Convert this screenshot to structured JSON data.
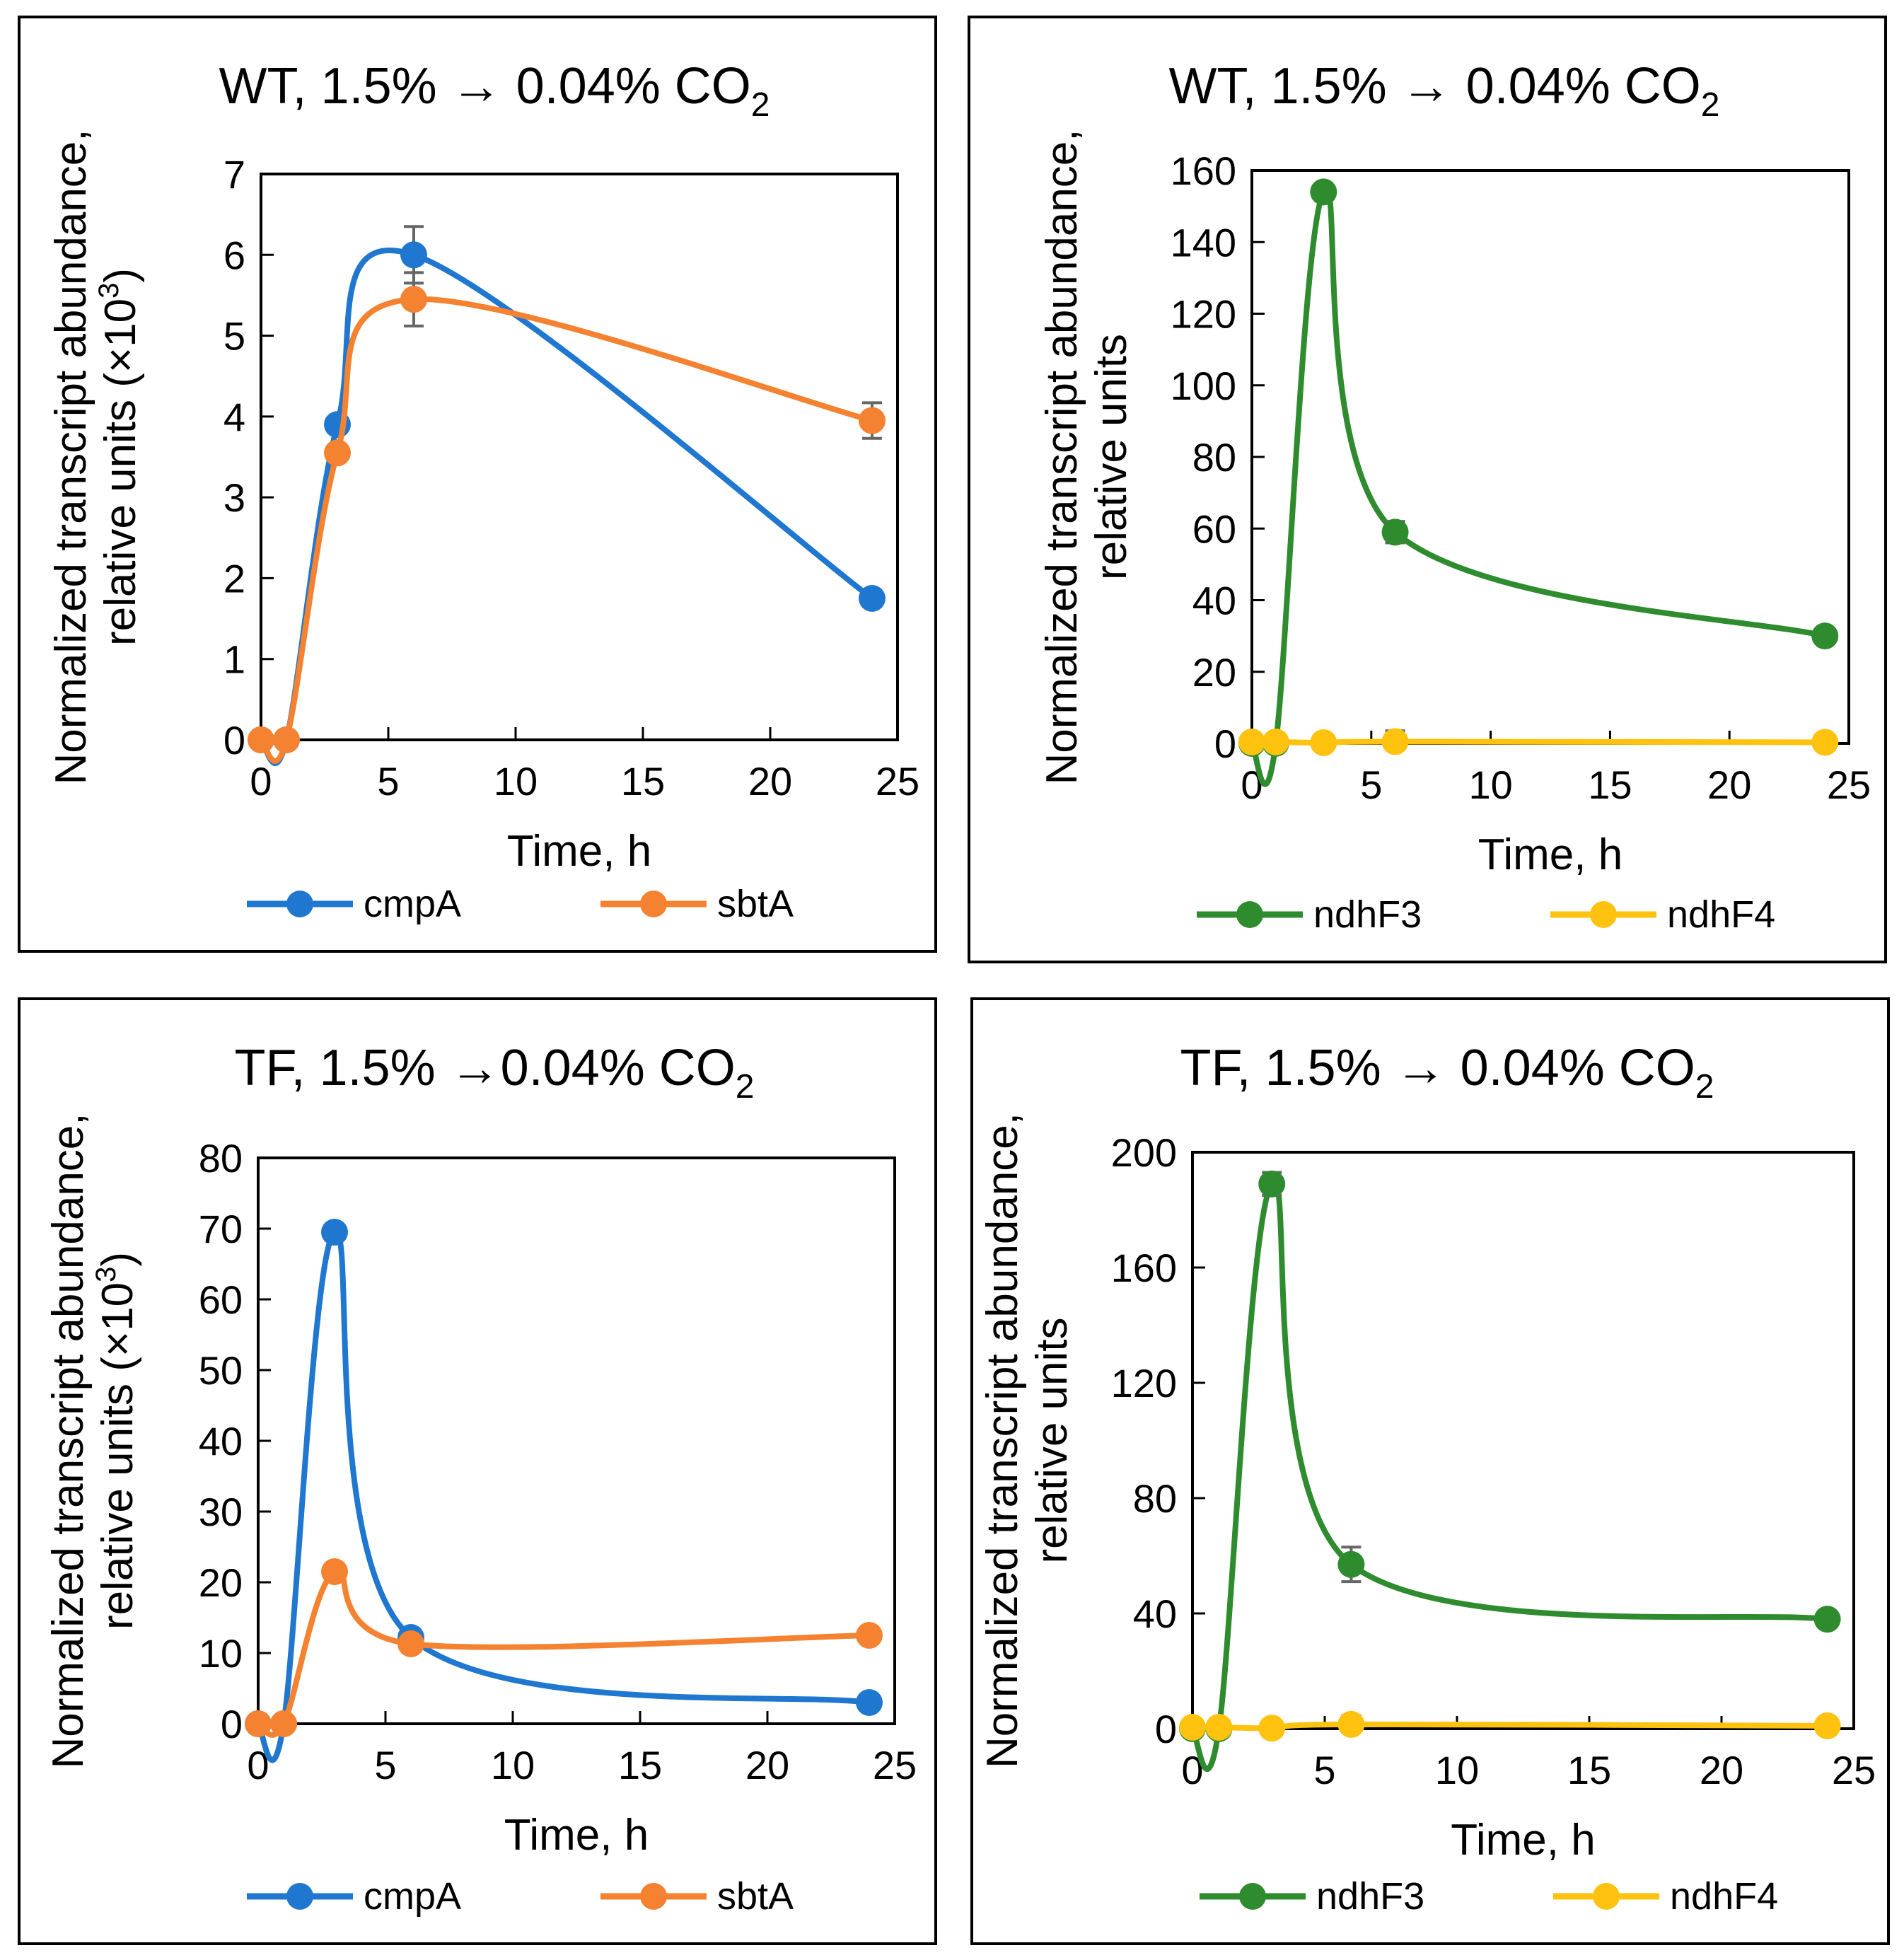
{
  "chart_data": [
    {
      "type": "line",
      "title_main": "WT, 1.5% → 0.04% CO",
      "title_sub": "2",
      "xlabel": "Time, h",
      "ylabel_line1": "Normalized transcript abundance,",
      "ylabel_line2": "relative units (×10",
      "ylabel_sup": "3",
      "ylabel_end": ")",
      "xlim": [
        0,
        25
      ],
      "ylim": [
        0,
        7
      ],
      "xticks": [
        "0",
        "5",
        "10",
        "15",
        "20",
        "25"
      ],
      "yticks": [
        "0",
        "1",
        "2",
        "3",
        "4",
        "5",
        "6",
        "7"
      ],
      "series": [
        {
          "name": "cmpA",
          "color": "#1f77cf",
          "x": [
            0,
            1,
            3,
            6,
            24
          ],
          "y": [
            0,
            0,
            3.9,
            6.0,
            1.75
          ],
          "err": [
            0,
            0,
            0.05,
            0.35,
            0.1
          ]
        },
        {
          "name": "sbtA",
          "color": "#f58230",
          "x": [
            0,
            1,
            3,
            6,
            24
          ],
          "y": [
            0,
            0,
            3.55,
            5.45,
            3.95
          ],
          "err": [
            0,
            0,
            0.05,
            0.33,
            0.22
          ]
        }
      ]
    },
    {
      "type": "line",
      "title_main": "WT, 1.5% → 0.04% CO",
      "title_sub": "2",
      "xlabel": "Time, h",
      "ylabel_line1": "Normalized transcript abundance,",
      "ylabel_line2": "relative units",
      "ylabel_sup": "",
      "ylabel_end": "",
      "xlim": [
        0,
        25
      ],
      "ylim": [
        0,
        160
      ],
      "xticks": [
        "0",
        "5",
        "10",
        "15",
        "20",
        "25"
      ],
      "yticks": [
        "0",
        "20",
        "40",
        "60",
        "80",
        "100",
        "120",
        "140",
        "160"
      ],
      "series": [
        {
          "name": "ndhF3",
          "color": "#2e8b2e",
          "x": [
            0,
            1,
            3,
            6,
            24
          ],
          "y": [
            0,
            0,
            154,
            59,
            30
          ],
          "err": [
            0,
            0,
            2,
            3,
            1
          ]
        },
        {
          "name": "ndhF4",
          "color": "#ffc20e",
          "x": [
            0,
            1,
            3,
            6,
            24
          ],
          "y": [
            0.4,
            0.4,
            0.2,
            0.5,
            0.3
          ],
          "err": [
            0,
            0,
            0,
            3,
            2
          ]
        }
      ]
    },
    {
      "type": "line",
      "title_main": "TF, 1.5% →0.04% CO",
      "title_sub": "2",
      "xlabel": "Time, h",
      "ylabel_line1": "Normalized transcript abundance,",
      "ylabel_line2": "relative units (×10",
      "ylabel_sup": "3",
      "ylabel_end": ")",
      "xlim": [
        0,
        25
      ],
      "ylim": [
        0,
        80
      ],
      "xticks": [
        "0",
        "5",
        "10",
        "15",
        "20",
        "25"
      ],
      "yticks": [
        "0",
        "10",
        "20",
        "30",
        "40",
        "50",
        "60",
        "70",
        "80"
      ],
      "series": [
        {
          "name": "cmpA",
          "color": "#1f77cf",
          "x": [
            0,
            1,
            3,
            6,
            24
          ],
          "y": [
            0,
            0,
            69.5,
            12.2,
            3.0
          ],
          "err": [
            0,
            0,
            0.8,
            0.5,
            0.3
          ]
        },
        {
          "name": "sbtA",
          "color": "#f58230",
          "x": [
            0,
            1,
            3,
            6,
            24
          ],
          "y": [
            0,
            0,
            21.5,
            11.3,
            12.5
          ],
          "err": [
            0,
            0,
            0.5,
            0.4,
            0.3
          ]
        }
      ]
    },
    {
      "type": "line",
      "title_main": "TF, 1.5% → 0.04% CO",
      "title_sub": "2",
      "xlabel": "Time, h",
      "ylabel_line1": "Normalized transcript abundance,",
      "ylabel_line2": "relative units",
      "ylabel_sup": "",
      "ylabel_end": "",
      "xlim": [
        0,
        25
      ],
      "ylim": [
        0,
        200
      ],
      "xticks": [
        "0",
        "5",
        "10",
        "15",
        "20",
        "25"
      ],
      "yticks": [
        "0",
        "40",
        "80",
        "120",
        "160",
        "200"
      ],
      "series": [
        {
          "name": "ndhF3",
          "color": "#2e8b2e",
          "x": [
            0,
            1,
            3,
            6,
            24
          ],
          "y": [
            0,
            0,
            189,
            57,
            38
          ],
          "err": [
            0,
            0,
            4,
            6,
            1
          ]
        },
        {
          "name": "ndhF4",
          "color": "#ffc20e",
          "x": [
            0,
            1,
            3,
            6,
            24
          ],
          "y": [
            0.5,
            0.5,
            0.2,
            1.5,
            1.0
          ],
          "err": [
            0,
            0,
            0,
            3,
            2
          ]
        }
      ]
    }
  ]
}
